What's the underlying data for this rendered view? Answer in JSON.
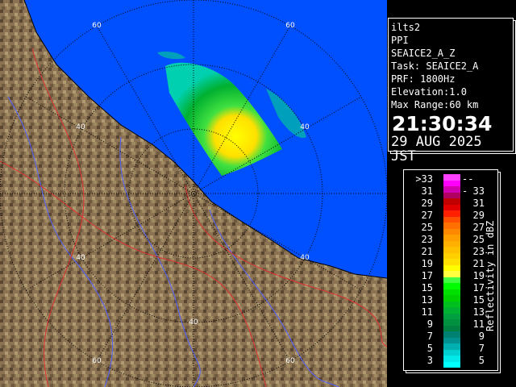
{
  "info": {
    "radar": "ilts2",
    "scan_type": "PPI",
    "product": "SEAICE2_A_Z",
    "task": "Task: SEAICE2_A",
    "prf": "PRF: 1800Hz",
    "elevation": "Elevation:1.0",
    "max_range": "Max Range:60 km",
    "time": "21:30:34",
    "date": "29 AUG 2025 JST"
  },
  "legend": {
    "unit_label": "Reflectivity in dBZ",
    "rows": [
      {
        "low": ">33",
        "high": "---"
      },
      {
        "low": "31",
        "high": "33"
      },
      {
        "low": "29",
        "high": "31"
      },
      {
        "low": "27",
        "high": "29"
      },
      {
        "low": "25",
        "high": "27"
      },
      {
        "low": "23",
        "high": "25"
      },
      {
        "low": "21",
        "high": "23"
      },
      {
        "low": "19",
        "high": "21"
      },
      {
        "low": "17",
        "high": "19"
      },
      {
        "low": "15",
        "high": "17"
      },
      {
        "low": "13",
        "high": "15"
      },
      {
        "low": "11",
        "high": "13"
      },
      {
        "low": "9",
        "high": "11"
      },
      {
        "low": "7",
        "high": "9"
      },
      {
        "low": "5",
        "high": "7"
      },
      {
        "low": "3",
        "high": "5"
      }
    ],
    "colors": [
      "#ff40ff",
      "#ff00ff",
      "#d000b0",
      "#b00060",
      "#c00000",
      "#e00000",
      "#ff2000",
      "#ff5000",
      "#ff7000",
      "#ff8800",
      "#ffa000",
      "#ffb000",
      "#ffc000",
      "#ffd000",
      "#ffe000",
      "#ffff00",
      "#ffff40",
      "#40ff40",
      "#00ff00",
      "#00e000",
      "#00d000",
      "#00c020",
      "#00b030",
      "#00a040",
      "#009040",
      "#008040",
      "#008070",
      "#009090",
      "#00b0b0",
      "#00d0d0",
      "#00e8e8",
      "#00ffff"
    ]
  },
  "map": {
    "range_ring_labels": [
      "60",
      "60",
      "40",
      "40",
      "40",
      "40",
      "40",
      "60",
      "60"
    ],
    "sea_color": "#0050ff",
    "land_color": "#8a7252"
  }
}
